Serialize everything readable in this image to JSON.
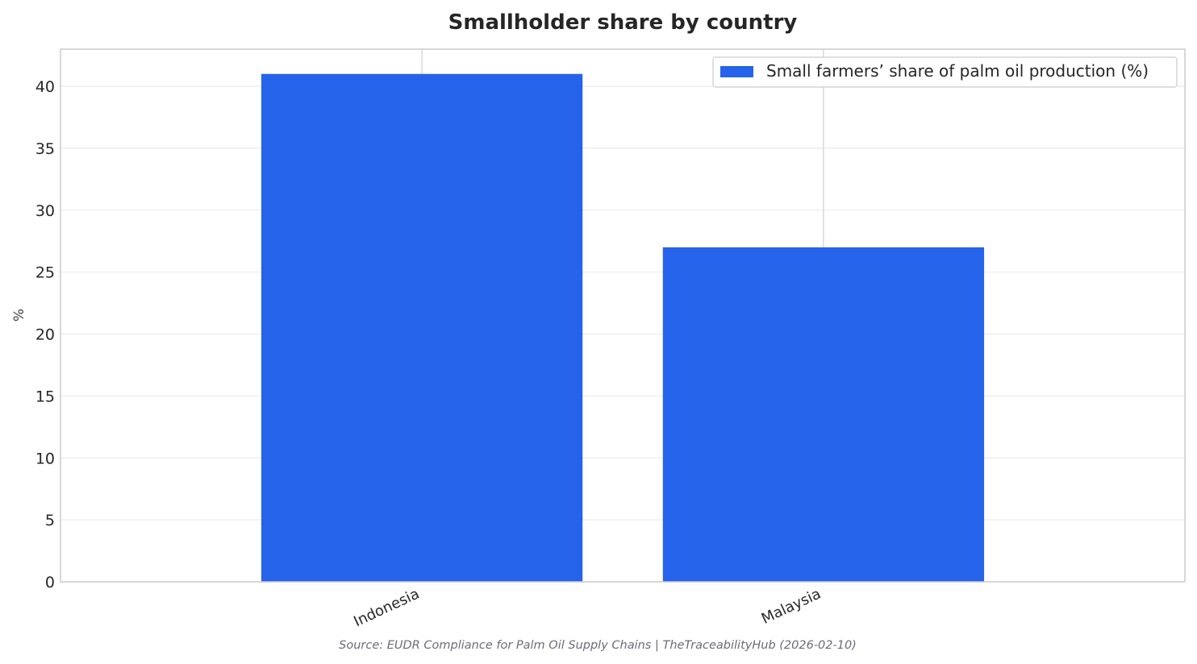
{
  "chart_data": {
    "type": "bar",
    "title": "Smallholder share by country",
    "xlabel": "",
    "ylabel": "%",
    "categories": [
      "Indonesia",
      "Malaysia"
    ],
    "series": [
      {
        "name": "Small farmers’ share of palm oil production (%)",
        "values": [
          41,
          27
        ],
        "color": "#2563eb"
      }
    ],
    "ylim": [
      0,
      43
    ],
    "yticks": [
      "0",
      "5",
      "10",
      "15",
      "20",
      "25",
      "30",
      "35",
      "40"
    ],
    "grid": true,
    "legend_position": "top-right"
  },
  "source_note": "Source: EUDR Compliance for Palm Oil Supply Chains | TheTraceabilityHub (2026-02-10)"
}
